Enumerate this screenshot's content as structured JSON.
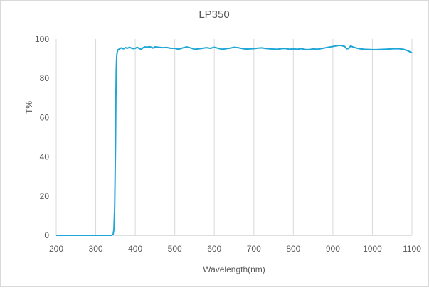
{
  "chart_data": {
    "type": "line",
    "title": "LP350",
    "xlabel": "Wavelength(nm)",
    "ylabel": "T%",
    "xlim": [
      200,
      1100
    ],
    "ylim": [
      0,
      100
    ],
    "x_ticks": [
      "200",
      "300",
      "400",
      "500",
      "600",
      "700",
      "800",
      "900",
      "1000",
      "1100"
    ],
    "y_ticks": [
      "0",
      "20",
      "40",
      "60",
      "80",
      "100"
    ],
    "grid": "vertical",
    "legend": "none",
    "line_color": "#1ea6d6",
    "series": [
      {
        "x": [
          200,
          250,
          300,
          330,
          340,
          344,
          346,
          348,
          350,
          351,
          352,
          353,
          354,
          356,
          360,
          365,
          370,
          375,
          380,
          385,
          390,
          395,
          400,
          405,
          410,
          415,
          420,
          425,
          430,
          435,
          440,
          445,
          450,
          460,
          470,
          480,
          490,
          500,
          510,
          520,
          530,
          540,
          550,
          560,
          570,
          580,
          590,
          600,
          610,
          620,
          630,
          640,
          650,
          660,
          670,
          680,
          690,
          700,
          710,
          720,
          730,
          740,
          750,
          760,
          770,
          780,
          790,
          800,
          810,
          820,
          830,
          840,
          850,
          860,
          870,
          880,
          890,
          900,
          910,
          920,
          930,
          935,
          940,
          945,
          950,
          960,
          970,
          980,
          990,
          1000,
          1010,
          1020,
          1030,
          1040,
          1050,
          1060,
          1070,
          1080,
          1090,
          1100
        ],
        "y": [
          0,
          0,
          0,
          0,
          0,
          0.5,
          3,
          15,
          45,
          70,
          85,
          91,
          93,
          94.5,
          95,
          95.5,
          95,
          95.6,
          95.3,
          95.8,
          95.4,
          95.1,
          95.3,
          95.8,
          95.2,
          94.7,
          95.6,
          96,
          95.8,
          96.1,
          95.9,
          95.4,
          96,
          95.8,
          95.6,
          95.7,
          95.3,
          95.3,
          94.8,
          95.5,
          96,
          95.5,
          94.8,
          95,
          95.3,
          95.6,
          95.3,
          95.8,
          95.3,
          94.8,
          95.1,
          95.4,
          95.8,
          95.6,
          95.2,
          94.9,
          95,
          95.1,
          95.4,
          95.5,
          95.2,
          95,
          94.9,
          94.8,
          95.1,
          95.2,
          94.8,
          95,
          94.8,
          95.1,
          94.7,
          94.6,
          95,
          94.8,
          95.1,
          95.5,
          95.9,
          96.2,
          96.6,
          96.8,
          96.2,
          95,
          95.2,
          96.5,
          96,
          95.4,
          95,
          94.8,
          94.7,
          94.6,
          94.6,
          94.7,
          94.8,
          94.9,
          95,
          95.1,
          95,
          94.7,
          94,
          93
        ]
      }
    ]
  }
}
